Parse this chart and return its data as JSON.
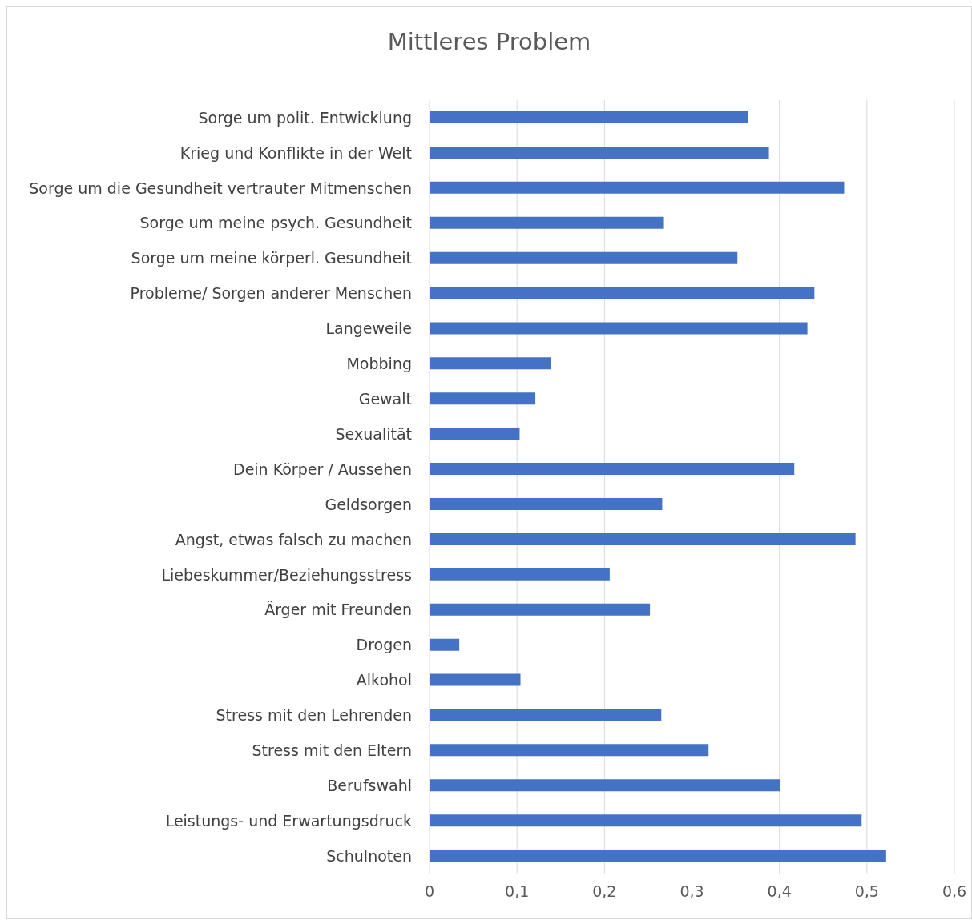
{
  "chart_data": {
    "type": "bar",
    "title": "Mittleres Problem",
    "orientation": "horizontal",
    "categories": [
      "Sorge um polit. Entwicklung",
      "Krieg und Konflikte in der Welt",
      "Sorge um die Gesundheit vertrauter Mitmenschen",
      "Sorge um meine psych. Gesundheit",
      "Sorge um meine körperl. Gesundheit",
      "Probleme/ Sorgen anderer Menschen",
      "Langeweile",
      "Mobbing",
      "Gewalt",
      "Sexualität",
      "Dein Körper / Aussehen",
      "Geldsorgen",
      "Angst, etwas falsch zu machen",
      "Liebeskummer/Beziehungsstress",
      "Ärger mit Freunden",
      "Drogen",
      "Alkohol",
      "Stress mit den Lehrenden",
      "Stress mit den Eltern",
      "Berufswahl",
      "Leistungs- und Erwartungsdruck",
      "Schulnoten"
    ],
    "values": [
      0.364,
      0.388,
      0.474,
      0.268,
      0.352,
      0.44,
      0.432,
      0.139,
      0.121,
      0.103,
      0.417,
      0.266,
      0.487,
      0.206,
      0.252,
      0.034,
      0.104,
      0.265,
      0.319,
      0.401,
      0.494,
      0.522
    ],
    "color": "#4472c4",
    "xlim": [
      0,
      0.6
    ],
    "xticks": [
      0,
      {
        "value": 0.1,
        "label": "0,1"
      },
      {
        "value": 0.2,
        "label": "0,2"
      },
      {
        "value": 0.3,
        "label": "0,3"
      },
      {
        "value": 0.4,
        "label": "0,4"
      },
      {
        "value": 0.5,
        "label": "0,5"
      },
      {
        "value": 0.6,
        "label": "0,6"
      }
    ],
    "grid": "x"
  }
}
